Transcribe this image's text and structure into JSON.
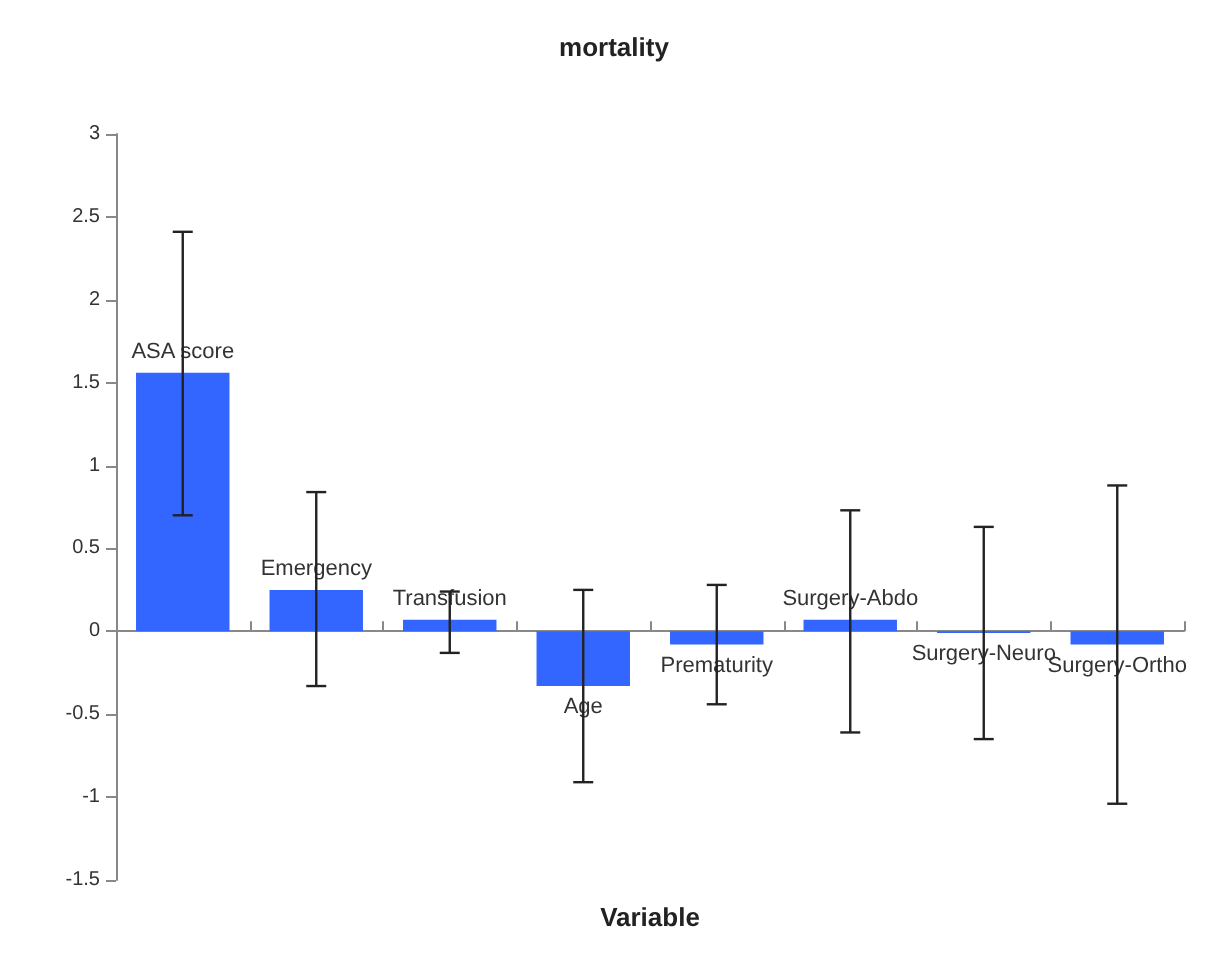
{
  "chart_data": {
    "type": "bar",
    "title": "mortality",
    "xlabel": "Variable",
    "categories": [
      "ASA score",
      "Emergency",
      "Transfusion",
      "Age",
      "Prematurity",
      "Surgery-Abdo",
      "Surgery-Neuro",
      "Surgery-Ortho"
    ],
    "values": [
      1.56,
      0.25,
      0.07,
      -0.33,
      -0.08,
      0.07,
      -0.01,
      -0.08
    ],
    "errors": [
      [
        0.7,
        2.41
      ],
      [
        -0.33,
        0.84
      ],
      [
        -0.13,
        0.24
      ],
      [
        -0.91,
        0.25
      ],
      [
        -0.44,
        0.28
      ],
      [
        -0.61,
        0.73
      ],
      [
        -0.65,
        0.63
      ],
      [
        -1.04,
        0.88
      ]
    ],
    "color": "#3366ff",
    "ylim": [
      -1.5,
      3
    ],
    "yticks": [
      -1.5,
      -1,
      -0.5,
      0,
      0.5,
      1,
      1.5,
      2,
      2.5,
      3
    ],
    "grid": false
  }
}
